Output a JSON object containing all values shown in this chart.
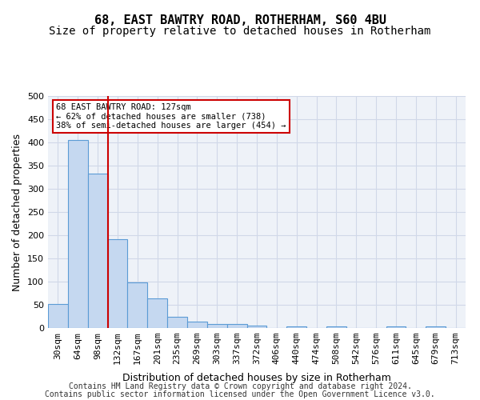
{
  "title": "68, EAST BAWTRY ROAD, ROTHERHAM, S60 4BU",
  "subtitle": "Size of property relative to detached houses in Rotherham",
  "xlabel": "Distribution of detached houses by size in Rotherham",
  "ylabel": "Number of detached properties",
  "bins": [
    "30sqm",
    "64sqm",
    "98sqm",
    "132sqm",
    "167sqm",
    "201sqm",
    "235sqm",
    "269sqm",
    "303sqm",
    "337sqm",
    "372sqm",
    "406sqm",
    "440sqm",
    "474sqm",
    "508sqm",
    "542sqm",
    "576sqm",
    "611sqm",
    "645sqm",
    "679sqm",
    "713sqm"
  ],
  "values": [
    52,
    406,
    333,
    192,
    98,
    63,
    24,
    13,
    9,
    9,
    6,
    0,
    4,
    0,
    4,
    0,
    0,
    4,
    0,
    4,
    0
  ],
  "bar_color": "#c5d8f0",
  "bar_edge_color": "#5b9bd5",
  "grid_color": "#d0d8e8",
  "background_color": "#eef2f8",
  "vline_x_index": 3,
  "vline_color": "#cc0000",
  "annotation_text": "68 EAST BAWTRY ROAD: 127sqm\n← 62% of detached houses are smaller (738)\n38% of semi-detached houses are larger (454) →",
  "annotation_box_color": "#ffffff",
  "annotation_box_edgecolor": "#cc0000",
  "ylim": [
    0,
    500
  ],
  "yticks": [
    0,
    50,
    100,
    150,
    200,
    250,
    300,
    350,
    400,
    450,
    500
  ],
  "footer_line1": "Contains HM Land Registry data © Crown copyright and database right 2024.",
  "footer_line2": "Contains public sector information licensed under the Open Government Licence v3.0.",
  "title_fontsize": 11,
  "subtitle_fontsize": 10,
  "axis_label_fontsize": 9,
  "tick_fontsize": 8,
  "footer_fontsize": 7
}
